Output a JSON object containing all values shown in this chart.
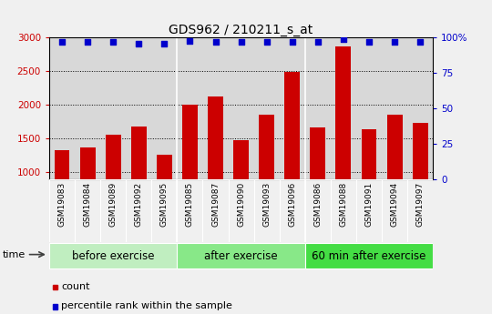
{
  "title": "GDS962 / 210211_s_at",
  "categories": [
    "GSM19083",
    "GSM19084",
    "GSM19089",
    "GSM19092",
    "GSM19095",
    "GSM19085",
    "GSM19087",
    "GSM19090",
    "GSM19093",
    "GSM19096",
    "GSM19086",
    "GSM19088",
    "GSM19091",
    "GSM19094",
    "GSM19097"
  ],
  "counts": [
    1330,
    1365,
    1560,
    1680,
    1255,
    2000,
    2120,
    1480,
    1860,
    2490,
    1670,
    2870,
    1640,
    1855,
    1730
  ],
  "percentile_ranks": [
    97,
    97,
    97,
    96,
    96,
    98,
    97,
    97,
    97,
    97,
    97,
    99,
    97,
    97,
    97
  ],
  "groups": [
    {
      "label": "before exercise",
      "start": 0,
      "end": 5
    },
    {
      "label": "after exercise",
      "start": 5,
      "end": 10
    },
    {
      "label": "60 min after exercise",
      "start": 10,
      "end": 15
    }
  ],
  "ylim_left": [
    900,
    3000
  ],
  "ylim_right": [
    0,
    100
  ],
  "yticks_left": [
    1000,
    1500,
    2000,
    2500,
    3000
  ],
  "yticks_right": [
    0,
    25,
    50,
    75,
    100
  ],
  "bar_color": "#cc0000",
  "dot_color": "#0000cc",
  "bg_color_plot": "#d8d8d8",
  "fig_bg_color": "#f0f0f0",
  "group_colors": [
    "#c0eec0",
    "#88e888",
    "#44dd44"
  ],
  "legend_count_label": "count",
  "legend_pct_label": "percentile rank within the sample",
  "time_label": "time",
  "dotted_grid_color": "#000000",
  "title_fontsize": 10,
  "tick_fontsize": 6.5,
  "group_label_fontsize": 8.5
}
